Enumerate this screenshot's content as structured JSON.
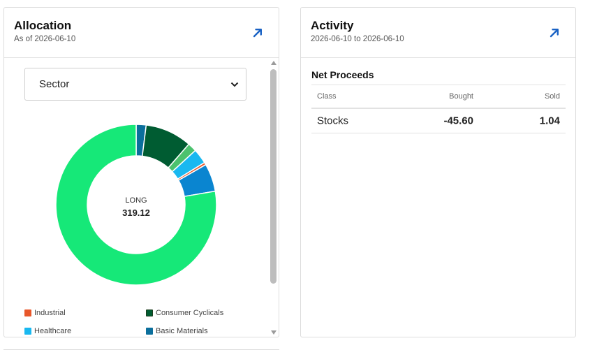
{
  "allocation": {
    "title": "Allocation",
    "as_of": "As of 2026-06-10",
    "group_by": "Sector",
    "center_label": "LONG",
    "center_value": "319.12",
    "legend": [
      {
        "label": "Industrial",
        "color": "#e8572a"
      },
      {
        "label": "Consumer Cyclicals",
        "color": "#005c32"
      },
      {
        "label": "Healthcare",
        "color": "#19b8f0"
      },
      {
        "label": "Basic Materials",
        "color": "#0b6f9c"
      }
    ],
    "chart_data": {
      "type": "pie",
      "donut": true,
      "slices": [
        {
          "label": "",
          "percent": 2.0,
          "color": "#0b6f9c"
        },
        {
          "label": "",
          "percent": 9.4,
          "color": "#005c32"
        },
        {
          "label": "",
          "percent": 1.8,
          "color": "#4cc26e"
        },
        {
          "label": "",
          "percent": 3.0,
          "color": "#19b8f0"
        },
        {
          "label": "",
          "percent": 0.5,
          "color": "#e8572a"
        },
        {
          "label": "",
          "percent": 5.6,
          "color": "#0a85d0"
        },
        {
          "label": "",
          "percent": 77.7,
          "color": "#16e878"
        }
      ]
    }
  },
  "activity": {
    "title": "Activity",
    "date_range": "2026-06-10 to 2026-06-10",
    "section_title": "Net Proceeds",
    "columns": {
      "class": "Class",
      "bought": "Bought",
      "sold": "Sold"
    },
    "rows": [
      {
        "class": "Stocks",
        "bought": "-45.60",
        "sold": "1.04"
      }
    ]
  },
  "icons": {
    "external_link": "arrow-up-right-icon",
    "dropdown": "chevron-down-icon"
  }
}
